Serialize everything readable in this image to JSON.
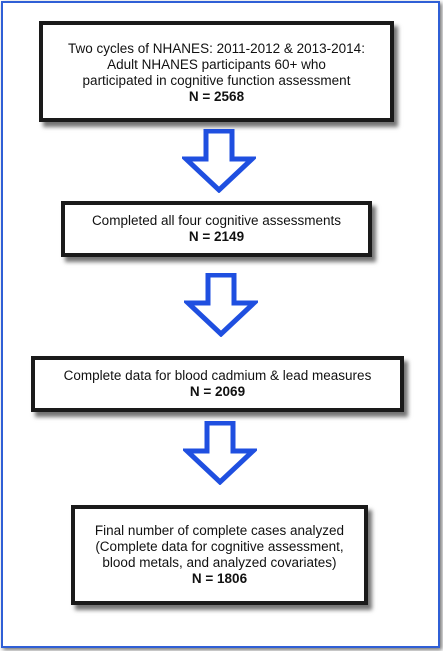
{
  "flowchart": {
    "boxes": [
      {
        "lines": [
          "Two cycles of NHANES: 2011-2012 & 2013-2014:",
          "Adult NHANES participants 60+ who",
          "participated in cognitive function assessment"
        ],
        "n": "N = 2568"
      },
      {
        "lines": [
          "Completed all four cognitive assessments"
        ],
        "n": "N = 2149"
      },
      {
        "lines": [
          "Complete data for blood cadmium & lead measures"
        ],
        "n": "N = 2069"
      },
      {
        "lines": [
          "Final number of complete cases analyzed",
          "(Complete data for cognitive assessment,",
          "blood metals, and analyzed covariates)"
        ],
        "n": "N = 1806"
      }
    ],
    "arrow_color": "#1f4fe0",
    "border_color": "#2f5fd6"
  }
}
